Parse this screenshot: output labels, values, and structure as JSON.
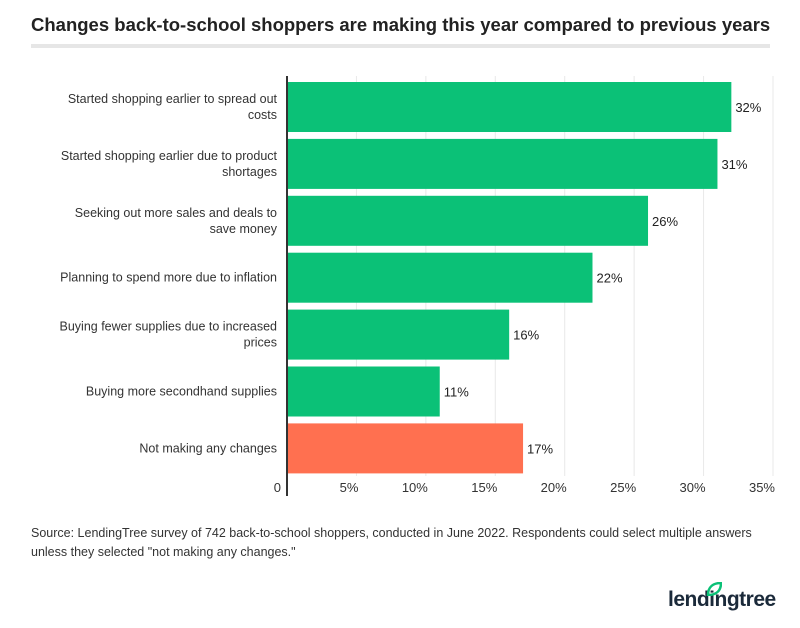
{
  "chart_data": {
    "type": "bar",
    "orientation": "horizontal",
    "title": "Changes back-to-school shoppers are making this year compared to previous years",
    "categories": [
      "Started shopping earlier to spread out costs",
      "Started shopping earlier due to product shortages",
      "Seeking out more sales and deals to save money",
      "Planning to spend more due to inflation",
      "Buying fewer supplies due to increased prices",
      "Buying more secondhand supplies",
      "Not making any changes"
    ],
    "values": [
      32,
      31,
      26,
      22,
      16,
      11,
      17
    ],
    "data_labels": [
      "32%",
      "31%",
      "26%",
      "22%",
      "16%",
      "11%",
      "17%"
    ],
    "bar_colors": [
      "#0bc177",
      "#0bc177",
      "#0bc177",
      "#0bc177",
      "#0bc177",
      "#0bc177",
      "#ff7050"
    ],
    "xticks": [
      0,
      5,
      10,
      15,
      20,
      25,
      30,
      35
    ],
    "xtick_labels": [
      "0",
      "5%",
      "10%",
      "15%",
      "20%",
      "25%",
      "30%",
      "35%"
    ],
    "xlim": [
      0,
      35
    ],
    "grid": "vertical",
    "source": "Source: LendingTree survey of 742 back-to-school shoppers, conducted in June 2022. Respondents could select multiple answers unless they selected \"not making any changes.\""
  },
  "logo": {
    "text": "lendingtree",
    "color": "#0bc177"
  }
}
